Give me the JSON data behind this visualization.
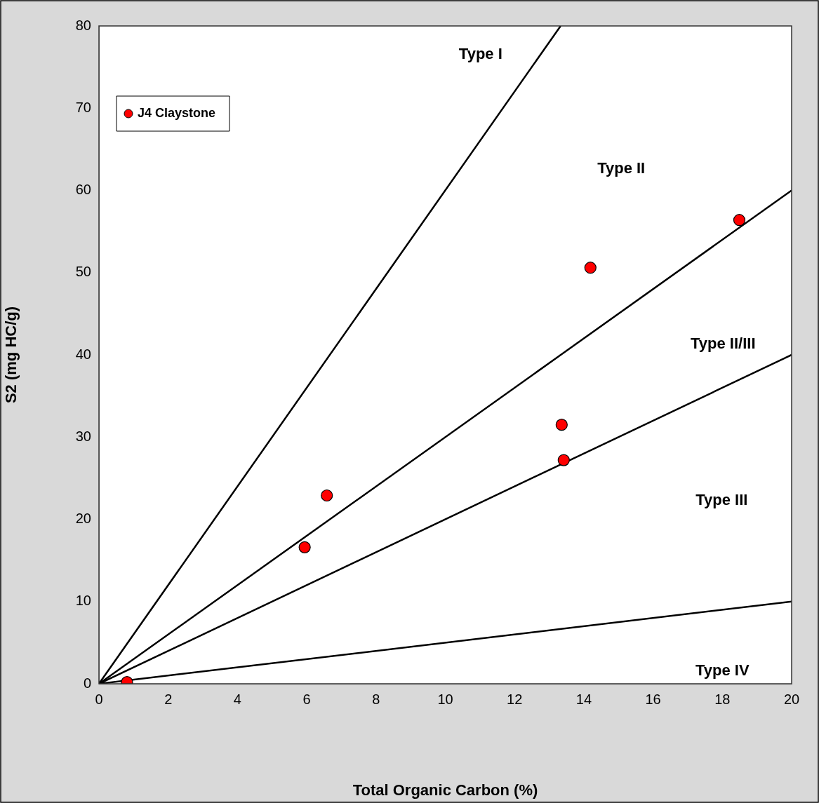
{
  "chart_data": {
    "type": "scatter",
    "xlabel": "Total Organic Carbon (%)",
    "ylabel": "S2 (mg HC/g)",
    "xlim": [
      0,
      20
    ],
    "xticks": [
      0,
      2,
      4,
      6,
      8,
      10,
      12,
      14,
      16,
      18,
      20
    ],
    "ylim": [
      0,
      80
    ],
    "yticks": [
      0,
      10,
      20,
      30,
      40,
      50,
      60,
      70,
      80
    ],
    "legend": "top left",
    "series": [
      {
        "name": "J4 Claystone",
        "marker": "circle",
        "color": "#ff0000",
        "x": [
          0.81,
          5.94,
          6.58,
          13.36,
          13.42,
          14.19,
          18.49
        ],
        "values": [
          0.2,
          16.6,
          22.9,
          31.5,
          27.2,
          50.6,
          56.4
        ]
      },
      {
        "type": "line",
        "marker": "none",
        "color": "#000000",
        "x": [
          0,
          13.33
        ],
        "values": [
          0,
          80
        ]
      },
      {
        "type": "line",
        "marker": "none",
        "color": "#000000",
        "x": [
          0,
          20
        ],
        "values": [
          0,
          60
        ]
      },
      {
        "type": "line",
        "marker": "none",
        "color": "#000000",
        "x": [
          0,
          20
        ],
        "values": [
          0,
          40
        ]
      },
      {
        "type": "line",
        "marker": "none",
        "color": "#000000",
        "x": [
          0,
          20
        ],
        "values": [
          0,
          10
        ]
      }
    ],
    "annotations": [
      "Type I",
      "Type II",
      "Type II/III",
      "Type III",
      "Type IV"
    ]
  }
}
